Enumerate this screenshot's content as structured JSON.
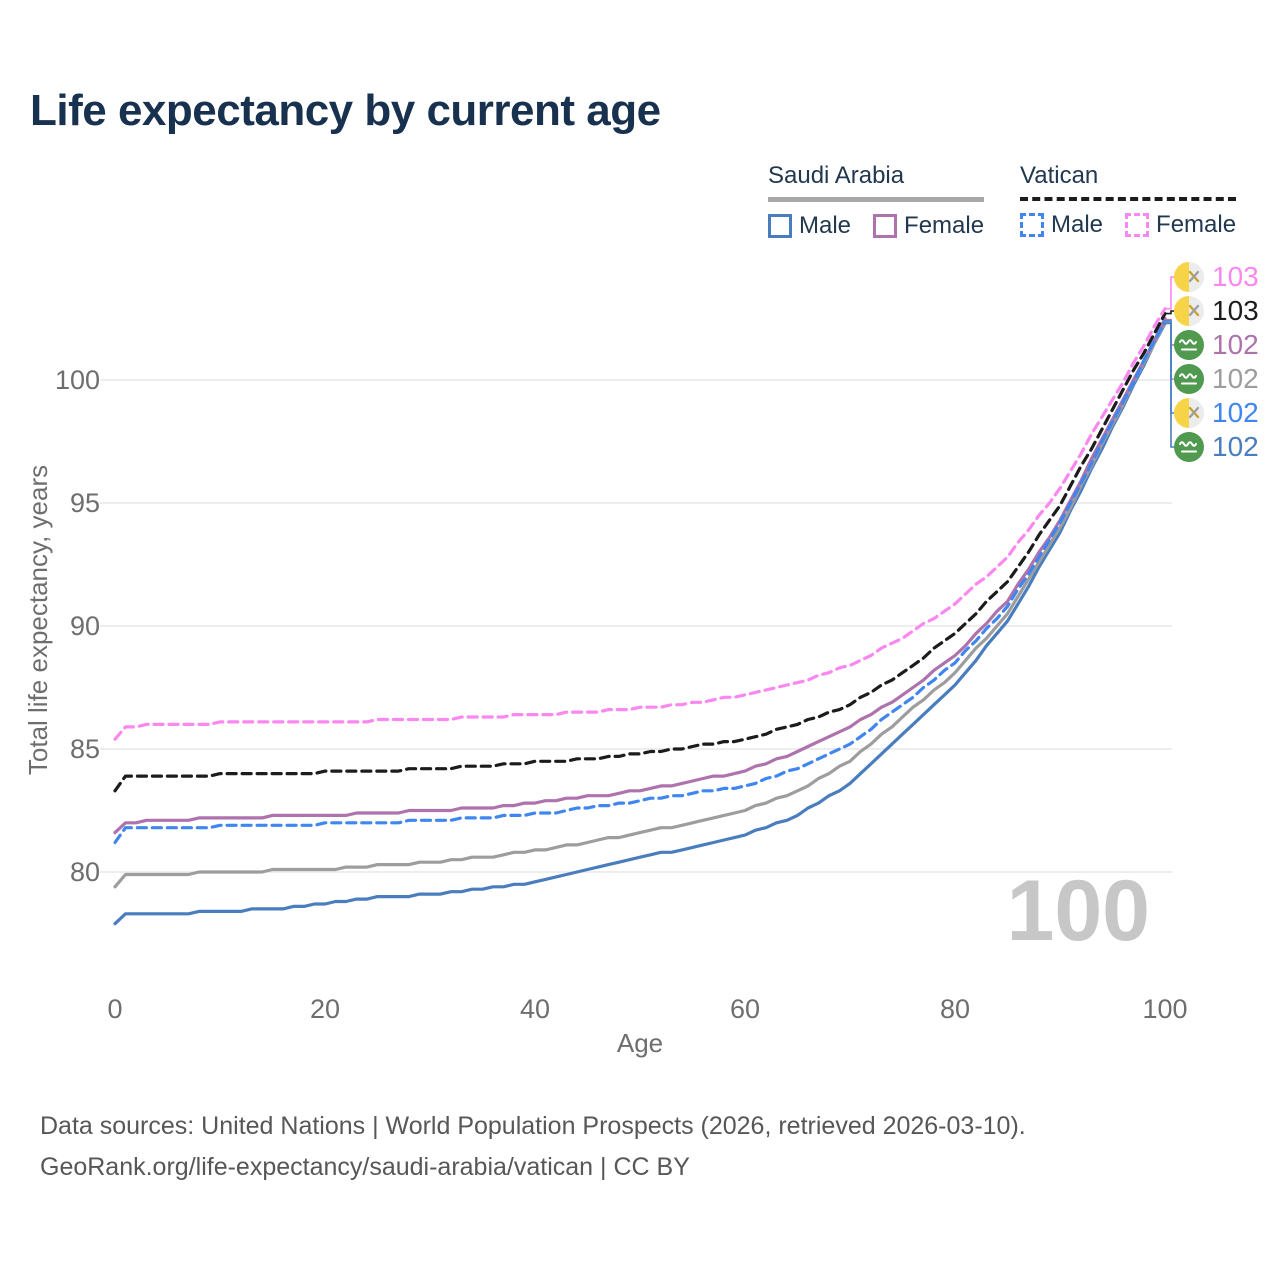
{
  "header": {
    "title": "Life expectancy by current age"
  },
  "legend": {
    "groups": [
      {
        "country": "Saudi Arabia",
        "line_style": "solid",
        "underline_color": "#a8a8a8",
        "items": [
          {
            "label": "Male",
            "color": "#4a7dbe",
            "dashed": false
          },
          {
            "label": "Female",
            "color": "#ae72ad",
            "dashed": false
          }
        ]
      },
      {
        "country": "Vatican",
        "line_style": "dashed",
        "underline_color": "#1c1c1c",
        "items": [
          {
            "label": "Male",
            "color": "#3f86f0",
            "dashed": true
          },
          {
            "label": "Female",
            "color": "#fb87f0",
            "dashed": true
          }
        ]
      }
    ]
  },
  "overlay": {
    "age_counter": "100"
  },
  "chart_data": {
    "type": "line",
    "title": "Life expectancy by current age",
    "xlabel": "Age",
    "ylabel": "Total life expectancy, years",
    "x_ticks": [
      0,
      20,
      40,
      60,
      80,
      100
    ],
    "y_ticks": [
      80,
      85,
      90,
      95,
      100
    ],
    "xlim": [
      0,
      100
    ],
    "ylim": [
      77,
      104
    ],
    "grid": "horizontal",
    "legend_position": "top-right",
    "ages": [
      0,
      1,
      5,
      10,
      15,
      20,
      25,
      30,
      35,
      40,
      45,
      50,
      55,
      60,
      65,
      70,
      75,
      80,
      85,
      90,
      95,
      100
    ],
    "series": [
      {
        "name": "Saudi Arabia Male",
        "country": "Saudi Arabia",
        "sex": "Male",
        "color": "#4a7dbe",
        "dashed": false,
        "values": [
          77.9,
          78.25,
          78.3,
          78.4,
          78.5,
          78.7,
          78.95,
          79.1,
          79.3,
          79.6,
          80.1,
          80.6,
          81.0,
          81.5,
          82.3,
          83.6,
          85.6,
          87.6,
          90.2,
          93.8,
          98.1,
          102.3
        ]
      },
      {
        "name": "Saudi Arabia All",
        "country": "Saudi Arabia",
        "sex": "Both sexes",
        "color": "#9d9d9d",
        "dashed": false,
        "values": [
          79.4,
          79.85,
          79.9,
          80.0,
          80.05,
          80.1,
          80.25,
          80.4,
          80.6,
          80.85,
          81.2,
          81.6,
          82.0,
          82.5,
          83.3,
          84.5,
          86.3,
          88.1,
          90.5,
          94.0,
          98.2,
          102.35
        ]
      },
      {
        "name": "Saudi Arabia Female",
        "country": "Saudi Arabia",
        "sex": "Female",
        "color": "#ae72ad",
        "dashed": false,
        "values": [
          81.6,
          82.0,
          82.1,
          82.2,
          82.25,
          82.3,
          82.4,
          82.5,
          82.6,
          82.8,
          83.05,
          83.3,
          83.7,
          84.1,
          84.9,
          85.9,
          87.2,
          88.8,
          91.0,
          94.3,
          98.4,
          102.45
        ]
      },
      {
        "name": "Vatican Male",
        "country": "Vatican",
        "sex": "Male",
        "color": "#3f86f0",
        "dashed": true,
        "values": [
          81.2,
          81.75,
          81.8,
          81.85,
          81.9,
          81.95,
          82.0,
          82.1,
          82.2,
          82.35,
          82.6,
          82.9,
          83.2,
          83.5,
          84.2,
          85.2,
          86.8,
          88.5,
          90.8,
          94.15,
          98.3,
          102.4
        ]
      },
      {
        "name": "Vatican All",
        "country": "Vatican",
        "sex": "Both sexes",
        "color": "#1c1c1c",
        "dashed": true,
        "values": [
          83.3,
          83.85,
          83.9,
          83.95,
          84.0,
          84.05,
          84.1,
          84.2,
          84.3,
          84.45,
          84.6,
          84.8,
          85.1,
          85.4,
          86.0,
          86.8,
          88.1,
          89.7,
          91.8,
          94.9,
          98.8,
          102.7
        ]
      },
      {
        "name": "Vatican Female",
        "country": "Vatican",
        "sex": "Female",
        "color": "#fb87f0",
        "dashed": true,
        "values": [
          85.4,
          85.9,
          86.0,
          86.05,
          86.1,
          86.1,
          86.15,
          86.2,
          86.3,
          86.4,
          86.5,
          86.65,
          86.85,
          87.2,
          87.7,
          88.4,
          89.5,
          90.9,
          92.8,
          95.6,
          99.2,
          102.9
        ]
      }
    ],
    "end_labels": [
      {
        "series": "Vatican Female",
        "value": "103",
        "color": "#fb87f0",
        "flag": "vatican-flag-icon"
      },
      {
        "series": "Vatican All",
        "value": "103",
        "color": "#1c1c1c",
        "flag": "vatican-flag-icon"
      },
      {
        "series": "Saudi Arabia Female",
        "value": "102",
        "color": "#ae72ad",
        "flag": "saudi-flag-icon"
      },
      {
        "series": "Saudi Arabia All",
        "value": "102",
        "color": "#9d9d9d",
        "flag": "saudi-flag-icon"
      },
      {
        "series": "Vatican Male",
        "value": "102",
        "color": "#3f86f0",
        "flag": "vatican-flag-icon"
      },
      {
        "series": "Saudi Arabia Male",
        "value": "102",
        "color": "#4a7dbe",
        "flag": "saudi-flag-icon"
      }
    ]
  },
  "footer": {
    "line1": "Data sources: United Nations | World Population Prospects (2026, retrieved 2026-03-10).",
    "line2": "GeoRank.org/life-expectancy/saudi-arabia/vatican | CC BY"
  }
}
